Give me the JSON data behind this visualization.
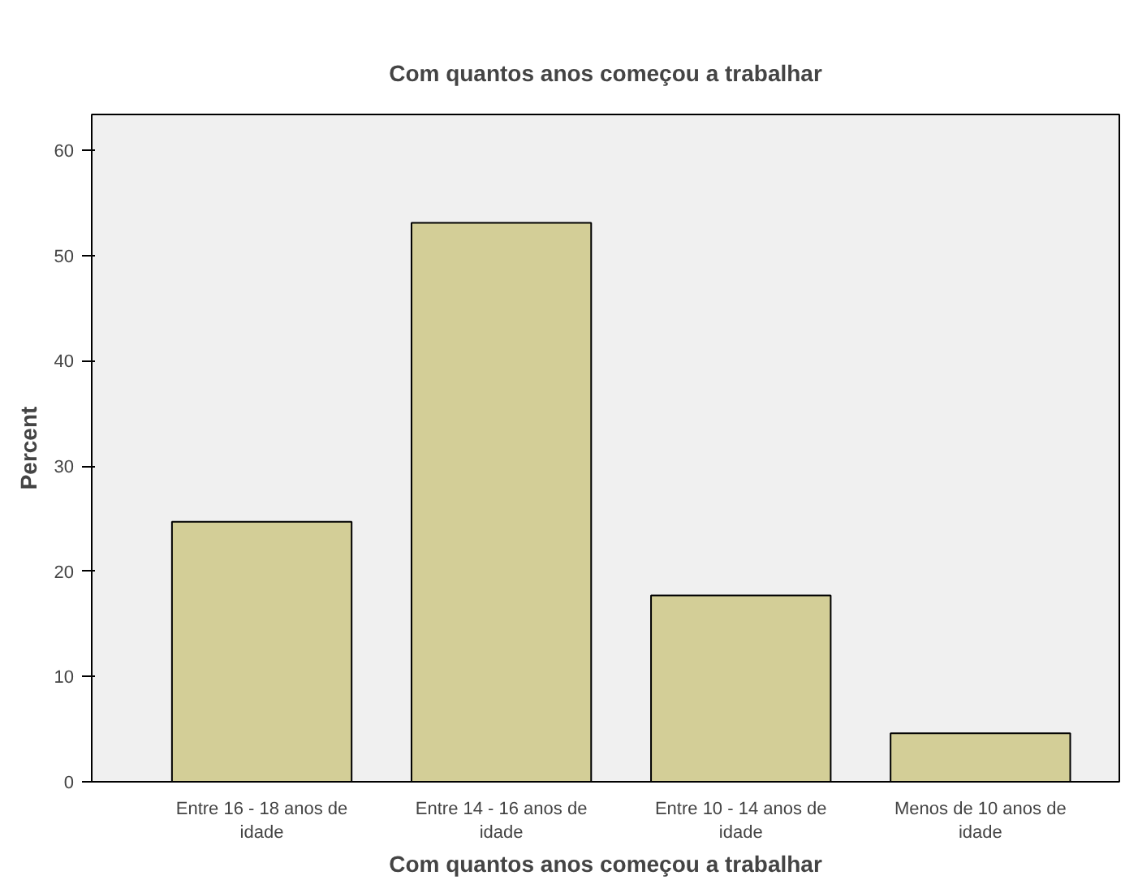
{
  "chart_data": {
    "type": "bar",
    "title": "Com quantos anos começou a trabalhar",
    "xlabel": "Com quantos anos começou a trabalhar",
    "ylabel": "Percent",
    "categories": [
      "Entre 16 - 18 anos de idade",
      "Entre 14 - 16 anos de idade",
      "Entre 10 - 14 anos de idade",
      "Menos de 10 anos de idade"
    ],
    "values": [
      24.7,
      53.1,
      17.7,
      4.6
    ],
    "color": "#d3ce97",
    "ylim": [
      0,
      63.4
    ],
    "yticks": [
      0,
      10,
      20,
      30,
      40,
      50,
      60
    ],
    "grid": false
  }
}
